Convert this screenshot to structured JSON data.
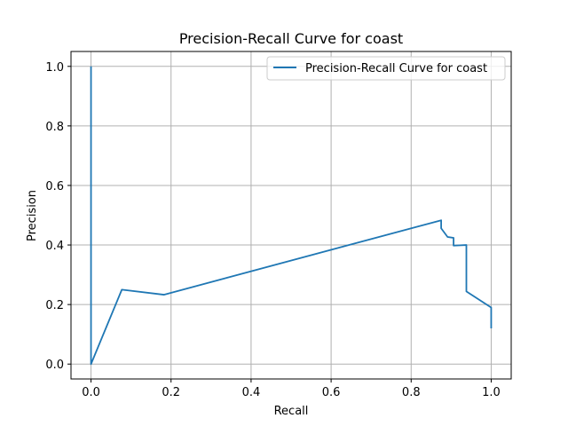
{
  "chart_data": {
    "type": "line",
    "title": "Precision-Recall Curve for coast",
    "xlabel": "Recall",
    "ylabel": "Precision",
    "xlim": [
      -0.05,
      1.05
    ],
    "ylim": [
      -0.05,
      1.05
    ],
    "xticks": [
      0.0,
      0.2,
      0.4,
      0.6,
      0.8,
      1.0
    ],
    "yticks": [
      0.0,
      0.2,
      0.4,
      0.6,
      0.8,
      1.0
    ],
    "xtick_labels": [
      "0.0",
      "0.2",
      "0.4",
      "0.6",
      "0.8",
      "1.0"
    ],
    "ytick_labels": [
      "0.0",
      "0.2",
      "0.4",
      "0.6",
      "0.8",
      "1.0"
    ],
    "grid": true,
    "legend_position": "top-right",
    "colors": {
      "series": "#1f77b4",
      "grid": "#b0b0b0"
    },
    "series": [
      {
        "name": "Precision-Recall Curve for coast",
        "x": [
          0.0,
          0.0,
          0.077,
          0.182,
          0.875,
          0.875,
          0.891,
          0.906,
          0.906,
          0.938,
          0.938,
          1.0,
          1.0
        ],
        "y": [
          1.0,
          0.0,
          0.25,
          0.233,
          0.483,
          0.456,
          0.427,
          0.424,
          0.398,
          0.4,
          0.244,
          0.19,
          0.12
        ]
      }
    ]
  }
}
